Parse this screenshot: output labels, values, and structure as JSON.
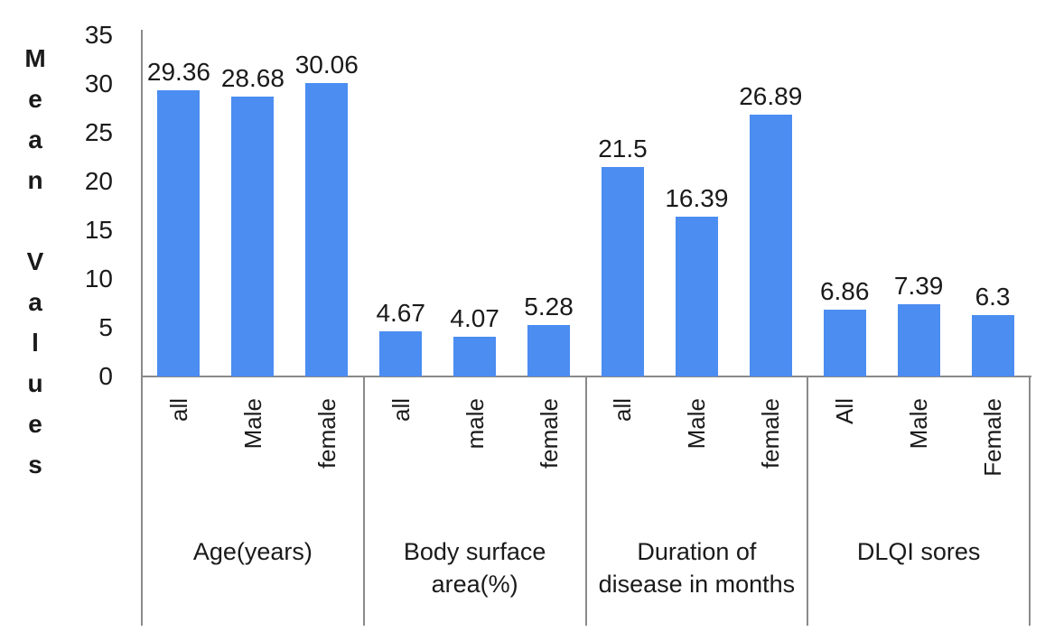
{
  "chart_data": {
    "type": "bar",
    "title": "",
    "xlabel": "",
    "ylabel": "Mean Values",
    "ylim": [
      0,
      35
    ],
    "yticks": [
      "35",
      "30",
      "25",
      "20",
      "15",
      "10",
      "5",
      "0"
    ],
    "grid": false,
    "legend": "none",
    "bar_color": "#4b8df1",
    "axis_line_color": "#8a8a8a",
    "text_color": "#1a1a1a",
    "groups": [
      {
        "label": "Age(years)",
        "label_lines": [
          "Age(years)"
        ],
        "bars": [
          {
            "category": "all",
            "value": 29.36,
            "value_label": "29.36"
          },
          {
            "category": "Male",
            "value": 28.68,
            "value_label": "28.68"
          },
          {
            "category": "female",
            "value": 30.06,
            "value_label": "30.06"
          }
        ]
      },
      {
        "label": "Body surface area(%)",
        "label_lines": [
          "Body surface",
          "area(%)"
        ],
        "bars": [
          {
            "category": "all",
            "value": 4.67,
            "value_label": "4.67"
          },
          {
            "category": "male",
            "value": 4.07,
            "value_label": "4.07"
          },
          {
            "category": "female",
            "value": 5.28,
            "value_label": "5.28"
          }
        ]
      },
      {
        "label": "Duration of disease in months",
        "label_lines": [
          "Duration of",
          "disease in months"
        ],
        "bars": [
          {
            "category": "all",
            "value": 21.5,
            "value_label": "21.5"
          },
          {
            "category": "Male",
            "value": 16.39,
            "value_label": "16.39"
          },
          {
            "category": "female",
            "value": 26.89,
            "value_label": "26.89"
          }
        ]
      },
      {
        "label": "DLQI sores",
        "label_lines": [
          "DLQI sores"
        ],
        "bars": [
          {
            "category": "All",
            "value": 6.86,
            "value_label": "6.86"
          },
          {
            "category": "Male",
            "value": 7.39,
            "value_label": "7.39"
          },
          {
            "category": "Female",
            "value": 6.3,
            "value_label": "6.3"
          }
        ]
      }
    ]
  }
}
